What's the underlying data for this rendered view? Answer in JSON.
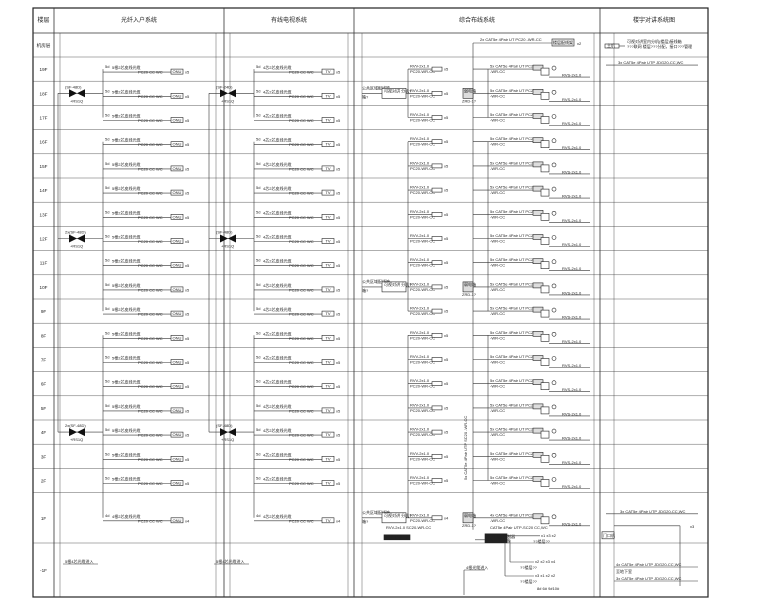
{
  "headers": {
    "floor": "楼层",
    "fiber": "光纤入户系统",
    "catv": "有线电视系统",
    "cabling": "综合布线系统",
    "intercom": "楼宇对讲系统图"
  },
  "rows": [
    "机房层",
    "19F",
    "18F",
    "17F",
    "16F",
    "15F",
    "14F",
    "13F",
    "12F",
    "11F",
    "10F",
    "9F",
    "8F",
    "7F",
    "6F",
    "5F",
    "4F",
    "3F",
    "2F",
    "1F",
    "-1F"
  ],
  "fiber": {
    "branch_label": "5根2芯皮线光缆",
    "branch_label_1f": "4根2芯皮线光缆",
    "prefix": "5d",
    "prefix_1f": "4d",
    "conduit": "PC20 CC WC",
    "box": "ONU",
    "count": "x5",
    "count_1f": "x4",
    "splitters": [
      {
        "floor": "18F",
        "label": "(SF-48D)",
        "sub": "+RS1Q"
      },
      {
        "floor": "12F",
        "label": "2x(SF-48D)",
        "sub": "+RS1Q"
      },
      {
        "floor": "4F",
        "label": "2x(SF-48D)",
        "sub": "+RS1Q"
      }
    ],
    "basement_note": "5根4芯光缆进入"
  },
  "catv": {
    "branch_label": "4芯2芯皮线光缆",
    "prefix": "5d",
    "prefix_1f": "4d",
    "conduit": "PC20 CC WC",
    "box": "TV",
    "count": "x5",
    "count_1f": "x4",
    "splitters": [
      {
        "floor": "18F",
        "label": "(SF-24D)",
        "sub": "+RS1Q"
      },
      {
        "floor": "12F",
        "label": "(SF-48D)",
        "sub": "+RS1Q"
      },
      {
        "floor": "4F",
        "label": "(SF-48D)",
        "sub": "+RS1Q"
      }
    ],
    "basement_note": "5根4芯光缆进入"
  },
  "cabling": {
    "top_line": "2x CAT5e 4Pair UT PC20 -WR-CC",
    "top_box": "楼层配线架",
    "top_count": "x2",
    "cable_a": "RVV-2x1.0",
    "conduit_a": "PC20-WR-CC",
    "count_a": "x5",
    "count_a_1f": "x4",
    "cable_b": "5x CAT5e 4Pair UT PC20",
    "cable_b_1f": "4x CAT5e 4Pair UT PC20",
    "conduit_b": "-WR-CC",
    "cable_c": "RVS-2x1.0",
    "distributor": "公共区域配线箱",
    "distributor_sub": "箱?",
    "panel": "可视对讲 分机?",
    "weak_box": "弱电箱",
    "weak_box_sub": "ZRD-1?",
    "riser_label": "5x CAT5e 4Pair UTP SC20 -WR-CC",
    "line_1f": "RVV-2x1.0 SC20-WR-CC",
    "line_1f_b": "CAT5e 4Pair UTP-SC20 CC,WC",
    "box_1f": "楼宇对讲主机",
    "junction": "单元门禁 控制器",
    "junction_sub": "出入口读卡器",
    "b_counts_1": "x1  x3 x2",
    "b_counts_2": "x2 x2  x3 x4",
    "b_counts_3": "x3 x1  x2 x2",
    "b_note": "??楼层??",
    "b_rooms": "8# 6# 9#10#",
    "b_feed": "4根光缆进入"
  },
  "intercom": {
    "top_box": "主机",
    "top_note": "可视对讲室内分机(楼层)接线箱",
    "top_note_2": "???联网 楼层???分配，接口???管理",
    "line_19f": "3x CAT5e 4Pair UTP JDG20-CC,WC",
    "line_1f": "3x CAT5e 4Pair UTP JDG20-CC,WC",
    "count_1f": "x3",
    "box_1f": "门口机",
    "line_b1": "4x CAT5e 4Pair UTP JDG20-CC,WC",
    "note_b1": "至地下室",
    "line_b1_2": "3x CAT5e 4Pair UTP JDG20-CC,WC"
  }
}
